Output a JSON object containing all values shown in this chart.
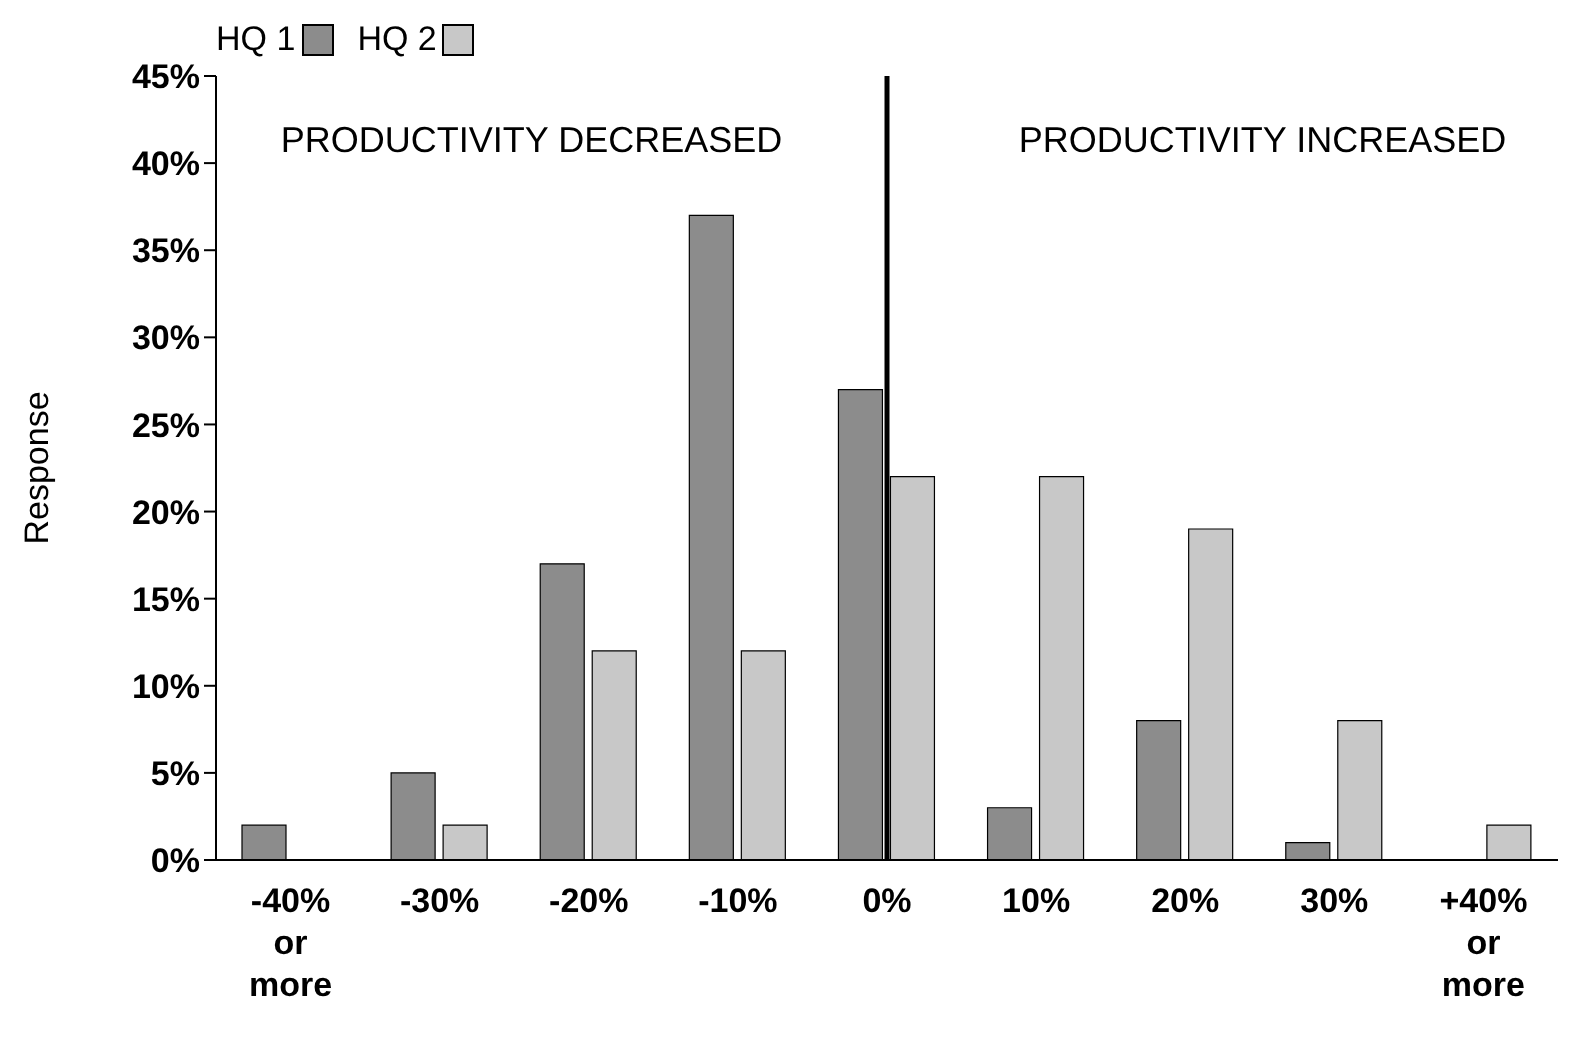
{
  "chart_data": {
    "type": "bar",
    "ylabel": "Response",
    "categories": [
      "-40% or more",
      "-30%",
      "-20%",
      "-10%",
      "0%",
      "10%",
      "20%",
      "30%",
      "+40% or more"
    ],
    "series": [
      {
        "name": "HQ 1",
        "color": "#8c8c8c",
        "values": [
          2,
          5,
          17,
          37,
          27,
          3,
          8,
          1,
          0
        ]
      },
      {
        "name": "HQ 2",
        "color": "#c8c8c8",
        "values": [
          0,
          2,
          12,
          12,
          22,
          22,
          19,
          8,
          2
        ]
      }
    ],
    "ylim": [
      0,
      45
    ],
    "yticks": [
      {
        "value": 0,
        "label": "0%"
      },
      {
        "value": 5,
        "label": "5%"
      },
      {
        "value": 10,
        "label": "10%"
      },
      {
        "value": 15,
        "label": "15%"
      },
      {
        "value": 20,
        "label": "20%"
      },
      {
        "value": 25,
        "label": "25%"
      },
      {
        "value": 30,
        "label": "30%"
      },
      {
        "value": 35,
        "label": "35%"
      },
      {
        "value": 40,
        "label": "40%"
      },
      {
        "value": 45,
        "label": "45%"
      }
    ],
    "ref_lines": [
      {
        "axis": "x",
        "value": "0%",
        "color": "#000000"
      }
    ],
    "annotations": [
      "PRODUCTIVITY DECREASED",
      "PRODUCTIVITY INCREASED"
    ],
    "legend": "top left"
  }
}
